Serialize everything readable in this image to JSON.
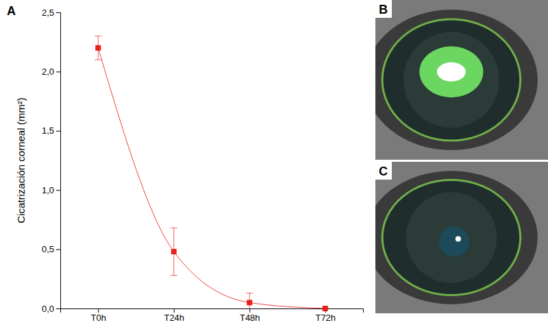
{
  "chart_data": {
    "type": "line",
    "y_label": "Cicatrización corneal (mm²)",
    "categories": [
      "T0h",
      "T24h",
      "T48h",
      "T72h"
    ],
    "values": [
      2.2,
      0.48,
      0.05,
      0.0
    ],
    "errors": [
      0.1,
      0.2,
      0.08,
      0.0
    ],
    "color": "#e8201a",
    "marker": "square",
    "line_style": "solid",
    "ylim": [
      0,
      2.5
    ],
    "yticks": [
      {
        "value": 0,
        "label": "0,0"
      },
      {
        "value": 0.5,
        "label": "0,5"
      },
      {
        "value": 1.0,
        "label": "1,0"
      },
      {
        "value": 1.5,
        "label": "1,5"
      },
      {
        "value": 2.0,
        "label": "2,0"
      },
      {
        "value": 2.5,
        "label": "2,5"
      }
    ],
    "grid": false
  },
  "panel_labels": [
    "A",
    "B",
    "C"
  ]
}
